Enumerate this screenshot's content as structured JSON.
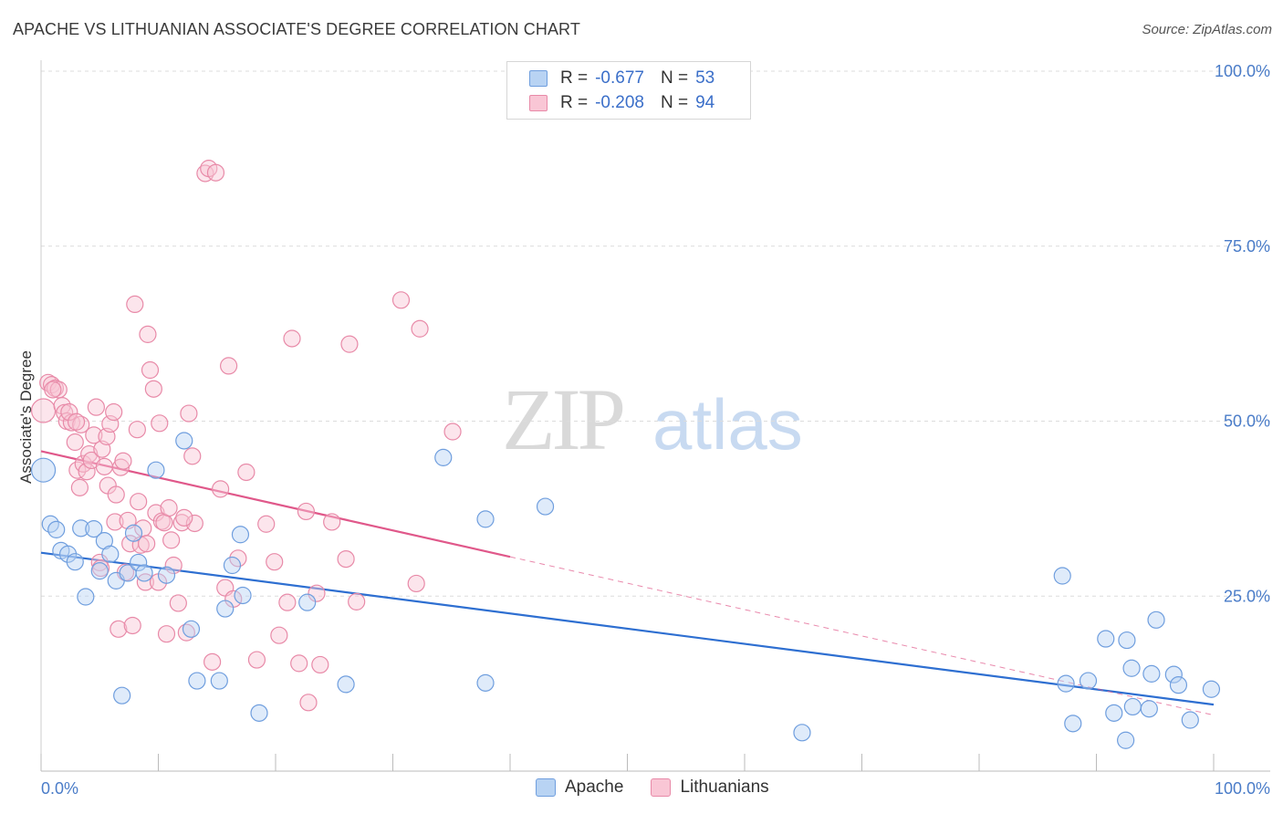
{
  "header": {
    "title": "APACHE VS LITHUANIAN ASSOCIATE'S DEGREE CORRELATION CHART",
    "source": "Source: ZipAtlas.com"
  },
  "watermark": {
    "zip": "ZIP",
    "atlas": "atlas"
  },
  "legend": {
    "r_label": "R = ",
    "n_label": "N = ",
    "rows": [
      {
        "r": "-0.677",
        "n": "53",
        "fill": "#b8d3f3",
        "stroke": "#6f9ede"
      },
      {
        "r": "-0.208",
        "n": "94",
        "fill": "#f9c6d5",
        "stroke": "#e88aa8"
      }
    ]
  },
  "bottom_legend": [
    {
      "label": "Apache",
      "fill": "#b8d3f3",
      "stroke": "#6f9ede"
    },
    {
      "label": "Lithuanians",
      "fill": "#f9c6d5",
      "stroke": "#e88aa8"
    }
  ],
  "chart_data": {
    "type": "scatter",
    "title": "APACHE VS LITHUANIAN ASSOCIATE'S DEGREE CORRELATION CHART",
    "ylabel": "Associate's Degree",
    "xlabel": "",
    "xlim": [
      0,
      100
    ],
    "ylim": [
      0,
      100
    ],
    "x_tick_labels": [
      "0.0%",
      "100.0%"
    ],
    "y_tick_values": [
      25,
      50,
      75,
      100
    ],
    "y_tick_labels": [
      "25.0%",
      "50.0%",
      "75.0%",
      "100.0%"
    ],
    "grid": "horizontal dashed",
    "colors": {
      "apache": "#6f9ede",
      "apache_line": "#2e6fd1",
      "lithuanians": "#e88aa8",
      "lithuanians_line": "#e0588a"
    },
    "series": [
      {
        "name": "Apache",
        "points": [
          [
            0.2,
            43.0
          ],
          [
            0.8,
            35.3
          ],
          [
            1.3,
            34.5
          ],
          [
            1.7,
            31.5
          ],
          [
            2.3,
            31.0
          ],
          [
            2.9,
            29.9
          ],
          [
            3.4,
            34.7
          ],
          [
            3.8,
            24.9
          ],
          [
            4.5,
            34.6
          ],
          [
            5.0,
            28.6
          ],
          [
            5.4,
            32.9
          ],
          [
            5.9,
            31.0
          ],
          [
            6.4,
            27.2
          ],
          [
            6.9,
            10.8
          ],
          [
            7.4,
            28.3
          ],
          [
            7.9,
            34.0
          ],
          [
            8.3,
            29.8
          ],
          [
            8.8,
            28.3
          ],
          [
            9.8,
            43.0
          ],
          [
            10.7,
            28.0
          ],
          [
            12.2,
            47.2
          ],
          [
            12.8,
            20.3
          ],
          [
            13.3,
            12.9
          ],
          [
            15.2,
            12.9
          ],
          [
            15.7,
            23.2
          ],
          [
            16.3,
            29.4
          ],
          [
            17.0,
            33.8
          ],
          [
            17.2,
            25.1
          ],
          [
            18.6,
            8.3
          ],
          [
            22.7,
            24.1
          ],
          [
            26.0,
            12.4
          ],
          [
            34.3,
            44.8
          ],
          [
            37.9,
            36.0
          ],
          [
            37.9,
            12.6
          ],
          [
            43.0,
            37.8
          ],
          [
            64.9,
            5.5
          ],
          [
            87.1,
            27.9
          ],
          [
            90.8,
            18.9
          ],
          [
            92.6,
            18.7
          ],
          [
            93.0,
            14.7
          ],
          [
            94.7,
            13.9
          ],
          [
            95.1,
            21.6
          ],
          [
            96.6,
            13.8
          ],
          [
            97.0,
            12.3
          ],
          [
            87.4,
            12.5
          ],
          [
            88.0,
            6.8
          ],
          [
            89.3,
            12.9
          ],
          [
            91.5,
            8.3
          ],
          [
            93.1,
            9.2
          ],
          [
            94.5,
            8.9
          ],
          [
            92.5,
            4.4
          ],
          [
            98.0,
            7.3
          ],
          [
            99.8,
            11.7
          ]
        ],
        "trend": {
          "x": [
            0,
            100
          ],
          "y": [
            31.2,
            9.5
          ]
        }
      },
      {
        "name": "Lithuanians",
        "points": [
          [
            0.2,
            51.5
          ],
          [
            0.6,
            55.5
          ],
          [
            0.9,
            55.2
          ],
          [
            1.2,
            54.7
          ],
          [
            1.5,
            54.5
          ],
          [
            1.8,
            52.2
          ],
          [
            2.0,
            51.2
          ],
          [
            2.2,
            50.0
          ],
          [
            2.6,
            49.8
          ],
          [
            2.9,
            47.0
          ],
          [
            3.1,
            43.0
          ],
          [
            3.3,
            40.5
          ],
          [
            3.4,
            49.5
          ],
          [
            3.6,
            43.9
          ],
          [
            3.9,
            42.8
          ],
          [
            4.1,
            45.3
          ],
          [
            4.3,
            44.4
          ],
          [
            4.5,
            48.0
          ],
          [
            4.7,
            52.0
          ],
          [
            5.0,
            29.8
          ],
          [
            5.2,
            46.0
          ],
          [
            5.4,
            43.5
          ],
          [
            5.6,
            47.8
          ],
          [
            5.7,
            40.8
          ],
          [
            5.9,
            49.6
          ],
          [
            6.2,
            51.3
          ],
          [
            6.3,
            35.6
          ],
          [
            6.4,
            39.5
          ],
          [
            6.6,
            20.3
          ],
          [
            6.8,
            43.4
          ],
          [
            7.0,
            44.3
          ],
          [
            7.2,
            28.4
          ],
          [
            7.4,
            35.8
          ],
          [
            7.6,
            32.5
          ],
          [
            7.8,
            20.8
          ],
          [
            8.0,
            66.7
          ],
          [
            8.2,
            48.8
          ],
          [
            8.3,
            38.5
          ],
          [
            8.5,
            32.3
          ],
          [
            8.7,
            34.7
          ],
          [
            8.9,
            27.0
          ],
          [
            9.1,
            62.4
          ],
          [
            9.3,
            57.3
          ],
          [
            9.6,
            54.6
          ],
          [
            9.8,
            36.9
          ],
          [
            10.0,
            27.0
          ],
          [
            10.1,
            49.7
          ],
          [
            10.3,
            35.7
          ],
          [
            10.5,
            35.5
          ],
          [
            10.7,
            19.6
          ],
          [
            10.9,
            37.6
          ],
          [
            11.1,
            33.0
          ],
          [
            11.3,
            29.4
          ],
          [
            11.7,
            24.0
          ],
          [
            12.0,
            35.5
          ],
          [
            12.4,
            19.8
          ],
          [
            12.6,
            51.1
          ],
          [
            12.9,
            45.0
          ],
          [
            13.1,
            35.4
          ],
          [
            14.0,
            85.4
          ],
          [
            14.3,
            86.1
          ],
          [
            14.6,
            15.6
          ],
          [
            14.9,
            85.5
          ],
          [
            15.3,
            40.3
          ],
          [
            15.7,
            26.2
          ],
          [
            16.0,
            57.9
          ],
          [
            16.4,
            24.6
          ],
          [
            16.8,
            30.4
          ],
          [
            17.5,
            42.7
          ],
          [
            18.4,
            15.9
          ],
          [
            19.2,
            35.3
          ],
          [
            19.9,
            29.9
          ],
          [
            20.3,
            19.4
          ],
          [
            21.0,
            24.1
          ],
          [
            21.4,
            61.8
          ],
          [
            22.0,
            15.4
          ],
          [
            22.6,
            37.1
          ],
          [
            22.8,
            9.8
          ],
          [
            23.5,
            25.4
          ],
          [
            23.8,
            15.2
          ],
          [
            24.8,
            35.6
          ],
          [
            26.0,
            30.3
          ],
          [
            26.3,
            61.0
          ],
          [
            26.9,
            24.2
          ],
          [
            30.7,
            67.3
          ],
          [
            32.0,
            26.8
          ],
          [
            32.3,
            63.2
          ],
          [
            35.1,
            48.5
          ],
          [
            1.0,
            54.5
          ],
          [
            2.4,
            51.3
          ],
          [
            3.0,
            49.9
          ],
          [
            5.1,
            29.0
          ],
          [
            9.0,
            32.5
          ],
          [
            12.2,
            36.2
          ]
        ],
        "trend": {
          "x": [
            0,
            100
          ],
          "y": [
            45.7,
            8.0
          ],
          "solid_until_x": 40
        }
      }
    ]
  }
}
